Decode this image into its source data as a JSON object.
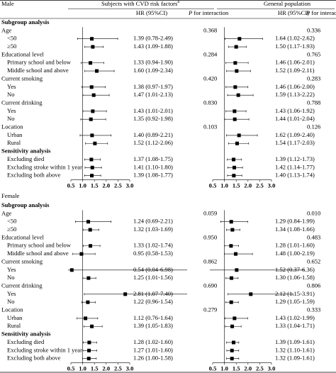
{
  "header": {
    "col1": "Subjects with CVD risk factors",
    "col1_sup": "a",
    "col2": "General population",
    "hr": "HR (95%CI)",
    "p_italic": "P",
    "p_rest": "for interaction"
  },
  "xlim": [
    0.5,
    3.0
  ],
  "xticks": [
    0.5,
    {
      "value": 1,
      "label": "1.0"
    },
    1.5,
    {
      "value": 2,
      "label": "2.0"
    },
    2.5,
    {
      "value": 3,
      "label": "3.0"
    }
  ],
  "panels": [
    {
      "title": "Male",
      "rows": [
        {
          "label": "Subgroup analysis"
        },
        {
          "label": "Age",
          "p_cvd": "0.368",
          "p_gen": "0.336"
        },
        {
          "label": "<50",
          "cvd": {
            "hr": 1.39,
            "lo": 0.78,
            "hi": 2.49,
            "text": "1.39 (0.78-2.49)"
          },
          "gen": {
            "hr": 1.64,
            "lo": 1.02,
            "hi": 2.62,
            "text": "1.64 (1.02-2.62)"
          }
        },
        {
          "label": "≥50",
          "cvd": {
            "hr": 1.43,
            "lo": 1.09,
            "hi": 1.88,
            "text": "1.43 (1.09-1.88)"
          },
          "gen": {
            "hr": 1.5,
            "lo": 1.17,
            "hi": 1.93,
            "text": "1.50 (1.17-1.93)"
          }
        },
        {
          "label": "Educational level",
          "p_cvd": "0.284",
          "p_gen": "0.765"
        },
        {
          "label": "Primary school and below",
          "cvd": {
            "hr": 1.33,
            "lo": 0.94,
            "hi": 1.9,
            "text": "1.33 (0.94-1.90)"
          },
          "gen": {
            "hr": 1.46,
            "lo": 1.06,
            "hi": 2.01,
            "text": "1.46 (1.06-2.01)"
          }
        },
        {
          "label": "Middle school and above",
          "cvd": {
            "hr": 1.6,
            "lo": 1.09,
            "hi": 2.34,
            "text": "1.60 (1.09-2.34)"
          },
          "gen": {
            "hr": 1.52,
            "lo": 1.09,
            "hi": 2.11,
            "text": "1.52 (1.09-2.11)"
          }
        },
        {
          "label": "Current smoking",
          "p_cvd": "0.420",
          "p_gen": "0.283"
        },
        {
          "label": "Yes",
          "cvd": {
            "hr": 1.38,
            "lo": 0.97,
            "hi": 1.97,
            "text": "1.38 (0.97-1.97)"
          },
          "gen": {
            "hr": 1.46,
            "lo": 1.06,
            "hi": 2.0,
            "text": "1.46 (1.06-2.00)"
          }
        },
        {
          "label": "No",
          "cvd": {
            "hr": 1.47,
            "lo": 1.01,
            "hi": 2.13,
            "text": "1.47 (1.01-2.13)"
          },
          "gen": {
            "hr": 1.59,
            "lo": 1.13,
            "hi": 2.22,
            "text": "1.59 (1.13-2.22)"
          }
        },
        {
          "label": "Current drinking",
          "p_cvd": "0.830",
          "p_gen": "0.788"
        },
        {
          "label": "Yes",
          "cvd": {
            "hr": 1.43,
            "lo": 1.01,
            "hi": 2.01,
            "text": "1.43 (1.01-2.01)"
          },
          "gen": {
            "hr": 1.43,
            "lo": 1.06,
            "hi": 1.92,
            "text": "1.43 (1.06-1.92)"
          }
        },
        {
          "label": "No",
          "cvd": {
            "hr": 1.35,
            "lo": 0.92,
            "hi": 1.98,
            "text": "1.35 (0.92-1.98)"
          },
          "gen": {
            "hr": 1.44,
            "lo": 1.01,
            "hi": 2.04,
            "text": "1.44 (1.01-2.04)"
          }
        },
        {
          "label": "Location",
          "p_cvd": "0.103",
          "p_gen": "0.126"
        },
        {
          "label": "Urban",
          "cvd": {
            "hr": 1.4,
            "lo": 0.89,
            "hi": 2.21,
            "text": "1.40 (0.89-2.21)"
          },
          "gen": {
            "hr": 1.62,
            "lo": 1.09,
            "hi": 2.4,
            "text": "1.62 (1.09-2.40)"
          }
        },
        {
          "label": "Rural",
          "cvd": {
            "hr": 1.52,
            "lo": 1.12,
            "hi": 2.06,
            "text": "1.52 (1.12-2.06)"
          },
          "gen": {
            "hr": 1.54,
            "lo": 1.17,
            "hi": 2.03,
            "text": "1.54 (1.17-2.03)"
          }
        },
        {
          "label": "Sensitivity analysis"
        },
        {
          "label": "Excluding died",
          "cvd": {
            "hr": 1.37,
            "lo": 1.08,
            "hi": 1.75,
            "text": "1.37 (1.08-1.75)"
          },
          "gen": {
            "hr": 1.39,
            "lo": 1.12,
            "hi": 1.73,
            "text": "1.39 (1.12-1.73)"
          }
        },
        {
          "label": "Excluding stroke within 1 year",
          "cvd": {
            "hr": 1.41,
            "lo": 1.1,
            "hi": 1.8,
            "text": "1.41 (1.10-1.80)"
          },
          "gen": {
            "hr": 1.42,
            "lo": 1.14,
            "hi": 1.77,
            "text": "1.42 (1.14-1.77)"
          }
        },
        {
          "label": "Excluding both above",
          "cvd": {
            "hr": 1.39,
            "lo": 1.08,
            "hi": 1.77,
            "text": "1.39 (1.08-1.77)"
          },
          "gen": {
            "hr": 1.4,
            "lo": 1.13,
            "hi": 1.74,
            "text": "1.40 (1.13-1.74)"
          }
        }
      ]
    },
    {
      "title": "Female",
      "rows": [
        {
          "label": "Subgroup analysis"
        },
        {
          "label": "Age",
          "p_cvd": "0.059",
          "p_gen": "0.010"
        },
        {
          "label": "<50",
          "cvd": {
            "hr": 1.24,
            "lo": 0.69,
            "hi": 2.21,
            "text": "1.24 (0.69-2.21)"
          },
          "gen": {
            "hr": 1.29,
            "lo": 0.84,
            "hi": 1.99,
            "text": "1.29 (0.84-1.99)"
          }
        },
        {
          "label": "≥50",
          "cvd": {
            "hr": 1.32,
            "lo": 1.03,
            "hi": 1.69,
            "text": "1.32 (1.03-1.69)"
          },
          "gen": {
            "hr": 1.34,
            "lo": 1.08,
            "hi": 1.66,
            "text": "1.34 (1.08-1.66)"
          }
        },
        {
          "label": "Educational level",
          "p_cvd": "0.950",
          "p_gen": "0.483"
        },
        {
          "label": "Primary school and below",
          "cvd": {
            "hr": 1.33,
            "lo": 1.02,
            "hi": 1.74,
            "text": "1.33 (1.02-1.74)"
          },
          "gen": {
            "hr": 1.28,
            "lo": 1.01,
            "hi": 1.6,
            "text": "1.28 (1.01-1.60)"
          }
        },
        {
          "label": "Middle school and above",
          "cvd": {
            "hr": 0.95,
            "lo": 0.58,
            "hi": 1.53,
            "text": "0.95 (0.58-1.53)"
          },
          "gen": {
            "hr": 1.48,
            "lo": 1.0,
            "hi": 2.19,
            "text": "1.48 (1.00-2.19)"
          }
        },
        {
          "label": "Current smoking",
          "p_cvd": "0.862",
          "p_gen": "0.652"
        },
        {
          "label": "Yes",
          "cvd": {
            "hr": 0.54,
            "lo": 0.04,
            "hi": 6.98,
            "text": "0.54 (0.04-6.98)"
          },
          "gen": {
            "hr": 1.52,
            "lo": 0.37,
            "hi": 6.36,
            "text": "1.52 (0.37-6.36)"
          }
        },
        {
          "label": "No",
          "cvd": {
            "hr": 1.25,
            "lo": 1.01,
            "hi": 1.56,
            "text": "1.25 (1.01-1.56)"
          },
          "gen": {
            "hr": 1.3,
            "lo": 1.06,
            "hi": 1.58,
            "text": "1.30 (1.06-1.58)"
          }
        },
        {
          "label": "Current drinking",
          "p_cvd": "0.690",
          "p_gen": "0.806"
        },
        {
          "label": "Yes",
          "cvd": {
            "hr": 2.81,
            "lo": 1.07,
            "hi": 7.4,
            "text": "2.81 (1.07-7.40)"
          },
          "gen": {
            "hr": 2.12,
            "lo": 1.15,
            "hi": 3.91,
            "text": "2.12 (1.15-3.91)"
          }
        },
        {
          "label": "No",
          "cvd": {
            "hr": 1.22,
            "lo": 0.96,
            "hi": 1.54,
            "text": "1.22 (0.96-1.54)"
          },
          "gen": {
            "hr": 1.29,
            "lo": 1.05,
            "hi": 1.59,
            "text": "1.29 (1.05-1.59)"
          }
        },
        {
          "label": "Location",
          "p_cvd": "0.279",
          "p_gen": "0.333"
        },
        {
          "label": "Urban",
          "cvd": {
            "hr": 1.12,
            "lo": 0.76,
            "hi": 1.64,
            "text": "1.12 (0.76-1.64)"
          },
          "gen": {
            "hr": 1.43,
            "lo": 1.02,
            "hi": 1.99,
            "text": "1.43 (1.02-1.99)"
          }
        },
        {
          "label": "Rural",
          "cvd": {
            "hr": 1.39,
            "lo": 1.05,
            "hi": 1.83,
            "text": "1.39 (1.05-1.83)"
          },
          "gen": {
            "hr": 1.33,
            "lo": 1.04,
            "hi": 1.71,
            "text": "1.33 (1.04-1.71)"
          }
        },
        {
          "label": "Sensitivity analysis"
        },
        {
          "label": "Excluding died",
          "cvd": {
            "hr": 1.28,
            "lo": 1.02,
            "hi": 1.6,
            "text": "1.28 (1.02-1.60)"
          },
          "gen": {
            "hr": 1.39,
            "lo": 1.09,
            "hi": 1.61,
            "text": "1.39 (1.09-1.61)"
          }
        },
        {
          "label": "Excluding stroke within 1 year",
          "cvd": {
            "hr": 1.27,
            "lo": 1.01,
            "hi": 1.6,
            "text": "1.27 (1.01-1.60)"
          },
          "gen": {
            "hr": 1.32,
            "lo": 1.1,
            "hi": 1.61,
            "text": "1.32 (1.10-1.61)"
          }
        },
        {
          "label": "Excluding both above",
          "cvd": {
            "hr": 1.26,
            "lo": 1.0,
            "hi": 1.58,
            "text": "1.26 (1.00-1.58)"
          },
          "gen": {
            "hr": 1.32,
            "lo": 1.09,
            "hi": 1.61,
            "text": "1.32 (1.09-1.61)"
          }
        }
      ]
    }
  ]
}
